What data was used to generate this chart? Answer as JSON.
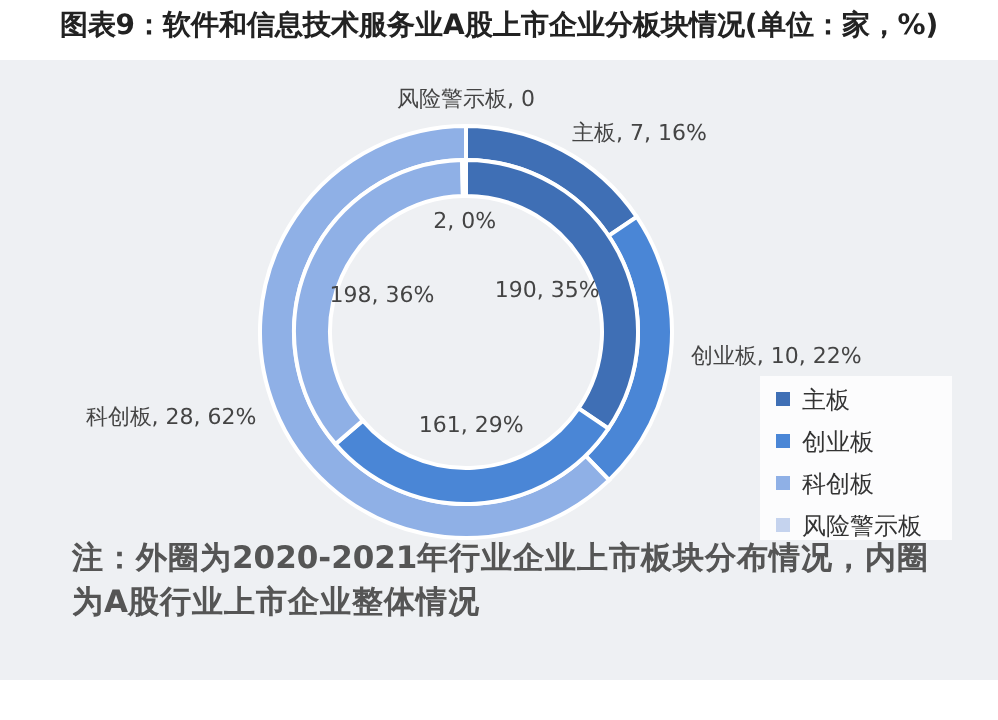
{
  "chart_data": {
    "type": "donut",
    "title": "图表9：软件和信息技术服务业A股上市企业分板块情况(单位：家，%)",
    "categories": [
      "主板",
      "创业板",
      "科创板",
      "风险警示板"
    ],
    "colors": [
      "#3f6fb5",
      "#4a86d6",
      "#8fb0e6",
      "#c5d3ee"
    ],
    "series": [
      {
        "values": [
          7,
          10,
          28,
          0
        ],
        "value_labels": [
          "主板, 7, 16%",
          "创业板, 10, 22%",
          "科创板, 28, 62%",
          "风险警示板, 0"
        ]
      },
      {
        "values": [
          190,
          161,
          198,
          2
        ],
        "value_labels": [
          "190, 35%",
          "161, 29%",
          "198, 36%",
          "2, 0%"
        ]
      }
    ],
    "legend": "right",
    "annotations": [
      "注：外圈为2020-2021年行业企业上市板块分布情况，内圈为A股行业上市企业整体情况"
    ]
  }
}
